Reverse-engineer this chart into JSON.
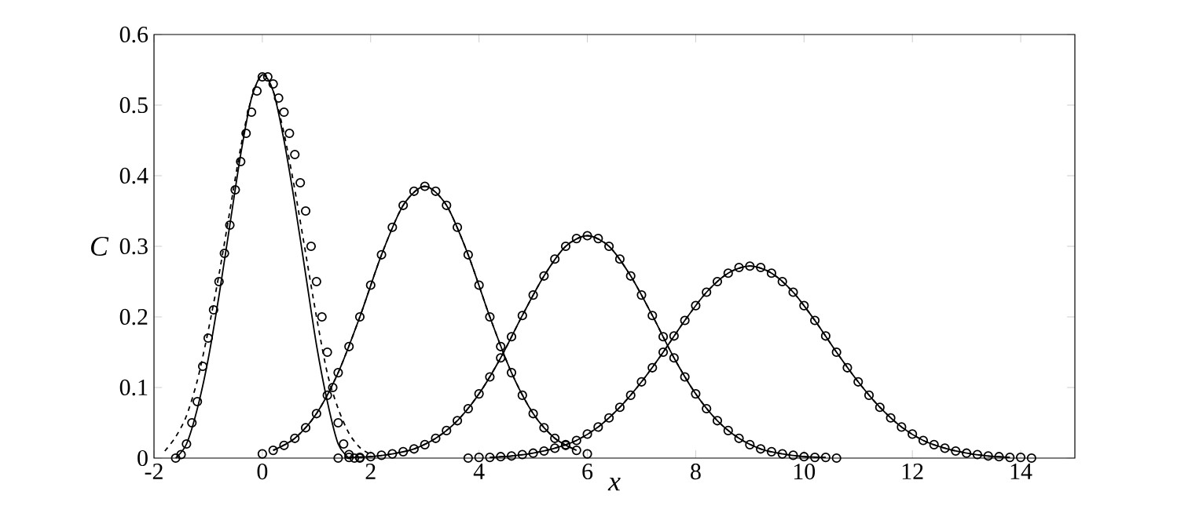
{
  "chart_data": {
    "type": "line",
    "xlabel": "x",
    "ylabel": "C",
    "xlim": [
      -2,
      15
    ],
    "ylim": [
      0,
      0.6
    ],
    "xticks": [
      -2,
      0,
      2,
      4,
      6,
      8,
      10,
      12,
      14
    ],
    "yticks": [
      0,
      0.1,
      0.2,
      0.3,
      0.4,
      0.5,
      0.6
    ],
    "grid": false,
    "series": [
      {
        "type": "line",
        "line_style": "solid",
        "marker": "none",
        "color": "#000000",
        "x": [
          -1.6,
          -1.4,
          -1.2,
          -1.0,
          -0.8,
          -0.6,
          -0.4,
          -0.2,
          0,
          0.2,
          0.4,
          0.6,
          0.8,
          1.0,
          1.2,
          1.4,
          1.6
        ],
        "values": [
          0,
          0.02,
          0.07,
          0.14,
          0.23,
          0.33,
          0.43,
          0.51,
          0.543,
          0.52,
          0.45,
          0.36,
          0.26,
          0.16,
          0.08,
          0.02,
          0
        ]
      },
      {
        "type": "line",
        "line_style": "dashed",
        "marker": "none",
        "color": "#000000",
        "x": [
          -1.8,
          -1.6,
          -1.4,
          -1.2,
          -1.0,
          -0.8,
          -0.6,
          -0.4,
          -0.2,
          0,
          0.2,
          0.4,
          0.6,
          0.8,
          1.0,
          1.2,
          1.4,
          1.6,
          1.8,
          2.0
        ],
        "values": [
          0.01,
          0.03,
          0.06,
          0.11,
          0.18,
          0.26,
          0.35,
          0.44,
          0.51,
          0.543,
          0.52,
          0.46,
          0.38,
          0.29,
          0.2,
          0.12,
          0.07,
          0.035,
          0.015,
          0.005
        ]
      },
      {
        "type": "scatter",
        "marker": "circle",
        "color": "#000000",
        "x": [
          -1.6,
          -1.5,
          -1.4,
          -1.3,
          -1.2,
          -1.1,
          -1.0,
          -0.9,
          -0.8,
          -0.7,
          -0.6,
          -0.5,
          -0.4,
          -0.3,
          -0.2,
          -0.1,
          0,
          0.1,
          0.2,
          0.3,
          0.4,
          0.5,
          0.6,
          0.7,
          0.8,
          0.9,
          1.0,
          1.1,
          1.2,
          1.3,
          1.4,
          1.5,
          1.6,
          1.7,
          1.8
        ],
        "values": [
          0,
          0.005,
          0.02,
          0.05,
          0.08,
          0.13,
          0.17,
          0.21,
          0.25,
          0.29,
          0.33,
          0.38,
          0.42,
          0.46,
          0.49,
          0.52,
          0.54,
          0.54,
          0.53,
          0.51,
          0.49,
          0.46,
          0.43,
          0.39,
          0.35,
          0.3,
          0.25,
          0.2,
          0.15,
          0.1,
          0.05,
          0.02,
          0.005,
          0,
          0
        ]
      },
      {
        "type": "line",
        "line_style": "solid",
        "marker": "none",
        "color": "#000000",
        "x": [
          0.2,
          0.6,
          1.0,
          1.4,
          1.8,
          2.2,
          2.6,
          3.0,
          3.4,
          3.8,
          4.2,
          4.6,
          5.0,
          5.4,
          5.8
        ],
        "values": [
          0.011,
          0.028,
          0.063,
          0.121,
          0.2,
          0.288,
          0.358,
          0.385,
          0.358,
          0.288,
          0.2,
          0.121,
          0.063,
          0.028,
          0.011
        ]
      },
      {
        "type": "line",
        "line_style": "dashed",
        "marker": "none",
        "color": "#000000",
        "x": [
          0.2,
          0.6,
          1.0,
          1.4,
          1.8,
          2.2,
          2.6,
          3.0,
          3.4,
          3.8,
          4.2,
          4.6,
          5.0,
          5.4,
          5.8
        ],
        "values": [
          0.011,
          0.028,
          0.063,
          0.121,
          0.2,
          0.288,
          0.358,
          0.385,
          0.358,
          0.288,
          0.2,
          0.121,
          0.063,
          0.028,
          0.011
        ]
      },
      {
        "type": "scatter",
        "marker": "circle",
        "color": "#000000",
        "x": [
          0,
          0.2,
          0.4,
          0.6,
          0.8,
          1.0,
          1.2,
          1.4,
          1.6,
          1.8,
          2.0,
          2.2,
          2.4,
          2.6,
          2.8,
          3.0,
          3.2,
          3.4,
          3.6,
          3.8,
          4.0,
          4.2,
          4.4,
          4.6,
          4.8,
          5.0,
          5.2,
          5.4,
          5.6,
          5.8,
          6.0
        ],
        "values": [
          0.006,
          0.011,
          0.018,
          0.028,
          0.043,
          0.063,
          0.089,
          0.121,
          0.158,
          0.2,
          0.245,
          0.288,
          0.327,
          0.358,
          0.378,
          0.385,
          0.378,
          0.358,
          0.327,
          0.288,
          0.245,
          0.2,
          0.158,
          0.121,
          0.089,
          0.063,
          0.043,
          0.028,
          0.018,
          0.011,
          0.006
        ]
      },
      {
        "type": "line",
        "line_style": "solid",
        "marker": "none",
        "color": "#000000",
        "x": [
          1.6,
          2.0,
          2.4,
          2.8,
          3.2,
          3.6,
          4.0,
          4.4,
          4.8,
          5.2,
          5.6,
          6.0,
          6.4,
          6.8,
          7.2,
          7.6,
          8.0,
          8.4,
          8.8,
          9.2,
          9.6,
          10.0,
          10.4
        ],
        "values": [
          0.001,
          0.002,
          0.006,
          0.013,
          0.028,
          0.053,
          0.091,
          0.142,
          0.202,
          0.258,
          0.3,
          0.315,
          0.3,
          0.258,
          0.202,
          0.142,
          0.091,
          0.053,
          0.028,
          0.013,
          0.006,
          0.002,
          0.001
        ]
      },
      {
        "type": "line",
        "line_style": "dashed",
        "marker": "none",
        "color": "#000000",
        "x": [
          1.6,
          2.0,
          2.4,
          2.8,
          3.2,
          3.6,
          4.0,
          4.4,
          4.8,
          5.2,
          5.6,
          6.0,
          6.4,
          6.8,
          7.2,
          7.6,
          8.0,
          8.4,
          8.8,
          9.2,
          9.6,
          10.0,
          10.4
        ],
        "values": [
          0.001,
          0.002,
          0.006,
          0.013,
          0.028,
          0.053,
          0.091,
          0.142,
          0.202,
          0.258,
          0.3,
          0.315,
          0.3,
          0.258,
          0.202,
          0.142,
          0.091,
          0.053,
          0.028,
          0.013,
          0.006,
          0.002,
          0.001
        ]
      },
      {
        "type": "scatter",
        "marker": "circle",
        "color": "#000000",
        "x": [
          1.4,
          1.6,
          1.8,
          2.0,
          2.2,
          2.4,
          2.6,
          2.8,
          3.0,
          3.2,
          3.4,
          3.6,
          3.8,
          4.0,
          4.2,
          4.4,
          4.6,
          4.8,
          5.0,
          5.2,
          5.4,
          5.6,
          5.8,
          6.0,
          6.2,
          6.4,
          6.6,
          6.8,
          7.0,
          7.2,
          7.4,
          7.6,
          7.8,
          8.0,
          8.2,
          8.4,
          8.6,
          8.8,
          9.0,
          9.2,
          9.4,
          9.6,
          9.8,
          10.0,
          10.2,
          10.4,
          10.6
        ],
        "values": [
          0,
          0.001,
          0.001,
          0.002,
          0.004,
          0.006,
          0.009,
          0.013,
          0.019,
          0.028,
          0.039,
          0.053,
          0.07,
          0.091,
          0.115,
          0.142,
          0.172,
          0.202,
          0.231,
          0.258,
          0.282,
          0.3,
          0.311,
          0.315,
          0.311,
          0.3,
          0.282,
          0.258,
          0.231,
          0.202,
          0.172,
          0.142,
          0.115,
          0.091,
          0.07,
          0.053,
          0.039,
          0.028,
          0.019,
          0.013,
          0.009,
          0.006,
          0.004,
          0.002,
          0.001,
          0.001,
          0
        ]
      },
      {
        "type": "line",
        "line_style": "solid",
        "marker": "none",
        "color": "#000000",
        "x": [
          4.2,
          4.6,
          5.0,
          5.4,
          5.8,
          6.2,
          6.6,
          7.0,
          7.4,
          7.8,
          8.2,
          8.6,
          9.0,
          9.4,
          9.8,
          10.2,
          10.6,
          11.0,
          11.4,
          11.8,
          12.2,
          12.6,
          13.0,
          13.4,
          13.8
        ],
        "values": [
          0.001,
          0.003,
          0.007,
          0.014,
          0.025,
          0.044,
          0.072,
          0.108,
          0.15,
          0.195,
          0.235,
          0.262,
          0.272,
          0.262,
          0.235,
          0.195,
          0.15,
          0.108,
          0.072,
          0.044,
          0.025,
          0.014,
          0.007,
          0.003,
          0.001
        ]
      },
      {
        "type": "line",
        "line_style": "dashed",
        "marker": "none",
        "color": "#000000",
        "x": [
          4.2,
          4.6,
          5.0,
          5.4,
          5.8,
          6.2,
          6.6,
          7.0,
          7.4,
          7.8,
          8.2,
          8.6,
          9.0,
          9.4,
          9.8,
          10.2,
          10.6,
          11.0,
          11.4,
          11.8,
          12.2,
          12.6,
          13.0,
          13.4,
          13.8
        ],
        "values": [
          0.001,
          0.003,
          0.007,
          0.014,
          0.025,
          0.044,
          0.072,
          0.108,
          0.15,
          0.195,
          0.235,
          0.262,
          0.272,
          0.262,
          0.235,
          0.195,
          0.15,
          0.108,
          0.072,
          0.044,
          0.025,
          0.014,
          0.007,
          0.003,
          0.001
        ]
      },
      {
        "type": "scatter",
        "marker": "circle",
        "color": "#000000",
        "x": [
          3.8,
          4.0,
          4.2,
          4.4,
          4.6,
          4.8,
          5.0,
          5.2,
          5.4,
          5.6,
          5.8,
          6.0,
          6.2,
          6.4,
          6.6,
          6.8,
          7.0,
          7.2,
          7.4,
          7.6,
          7.8,
          8.0,
          8.2,
          8.4,
          8.6,
          8.8,
          9.0,
          9.2,
          9.4,
          9.6,
          9.8,
          10.0,
          10.2,
          10.4,
          10.6,
          10.8,
          11.0,
          11.2,
          11.4,
          11.6,
          11.8,
          12.0,
          12.2,
          12.4,
          12.6,
          12.8,
          13.0,
          13.2,
          13.4,
          13.6,
          13.8,
          14.0,
          14.2
        ],
        "values": [
          0,
          0.001,
          0.001,
          0.002,
          0.003,
          0.005,
          0.007,
          0.01,
          0.014,
          0.019,
          0.025,
          0.034,
          0.044,
          0.057,
          0.072,
          0.089,
          0.108,
          0.128,
          0.15,
          0.173,
          0.195,
          0.216,
          0.235,
          0.25,
          0.262,
          0.27,
          0.272,
          0.27,
          0.262,
          0.25,
          0.235,
          0.216,
          0.195,
          0.173,
          0.15,
          0.128,
          0.108,
          0.089,
          0.072,
          0.057,
          0.044,
          0.034,
          0.025,
          0.019,
          0.014,
          0.01,
          0.007,
          0.005,
          0.003,
          0.002,
          0.001,
          0.001,
          0
        ]
      }
    ]
  }
}
